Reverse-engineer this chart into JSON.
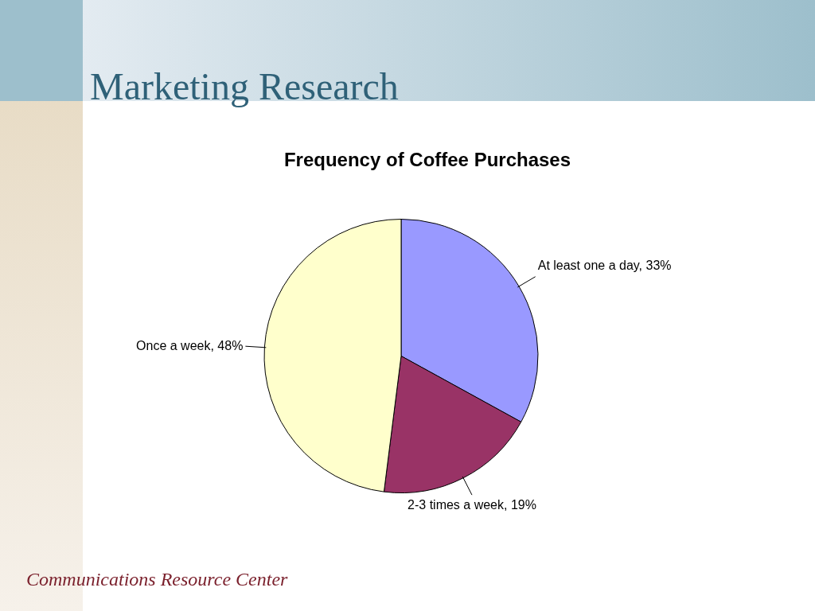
{
  "chart_data": {
    "type": "pie",
    "title": "Marketing Research",
    "subtitle": "Frequency of Coffee Purchases",
    "categories": [
      "At least one a day",
      "2-3 times a week",
      "Once a week"
    ],
    "values": [
      33,
      19,
      48
    ],
    "colors": [
      "#9999ff",
      "#993366",
      "#ffffcc"
    ],
    "value_labels": [
      "33%",
      "19%",
      "48%"
    ],
    "annotations": [
      "Communications Resource Center"
    ]
  }
}
